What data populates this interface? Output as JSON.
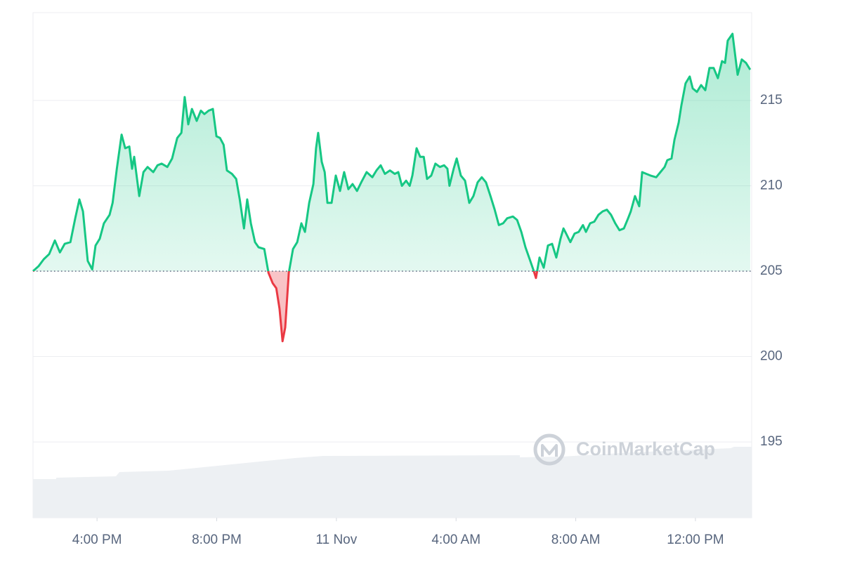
{
  "chart_data": {
    "type": "line",
    "watermark": "CoinMarketCap",
    "baseline": 205,
    "below_color": "#ea3943",
    "xlim": [
      13.86,
      37.88
    ],
    "xticks": [
      {
        "value": 16,
        "label": "4:00 PM"
      },
      {
        "value": 20,
        "label": "8:00 PM"
      },
      {
        "value": 24,
        "label": "11 Nov"
      },
      {
        "value": 28,
        "label": "4:00 AM"
      },
      {
        "value": 32,
        "label": "8:00 AM"
      },
      {
        "value": 36,
        "label": "12:00 PM"
      }
    ],
    "ylim": [
      190.56,
      220.14
    ],
    "yticks": [
      195,
      200,
      205,
      210,
      215
    ],
    "grid": true,
    "x": [
      13.86,
      14.05,
      14.22,
      14.4,
      14.59,
      14.76,
      14.92,
      15.11,
      15.27,
      15.41,
      15.53,
      15.69,
      15.84,
      15.95,
      16.09,
      16.23,
      16.42,
      16.52,
      16.66,
      16.82,
      16.94,
      17.08,
      17.17,
      17.24,
      17.41,
      17.55,
      17.69,
      17.88,
      18.02,
      18.16,
      18.35,
      18.51,
      18.68,
      18.82,
      18.93,
      19.05,
      19.17,
      19.33,
      19.47,
      19.59,
      19.73,
      19.87,
      19.99,
      20.11,
      20.23,
      20.34,
      20.51,
      20.65,
      20.77,
      20.91,
      21.02,
      21.14,
      21.28,
      21.4,
      21.59,
      21.73,
      21.87,
      21.99,
      22.1,
      22.2,
      22.29,
      22.41,
      22.55,
      22.69,
      22.83,
      22.95,
      23.09,
      23.23,
      23.32,
      23.39,
      23.51,
      23.61,
      23.7,
      23.84,
      23.98,
      24.12,
      24.26,
      24.4,
      24.54,
      24.69,
      24.83,
      25.01,
      25.2,
      25.34,
      25.48,
      25.62,
      25.79,
      25.95,
      26.07,
      26.19,
      26.33,
      26.45,
      26.54,
      26.68,
      26.8,
      26.92,
      27.03,
      27.17,
      27.31,
      27.46,
      27.6,
      27.71,
      27.78,
      27.92,
      28.02,
      28.16,
      28.3,
      28.44,
      28.58,
      28.72,
      28.86,
      29.0,
      29.15,
      29.29,
      29.43,
      29.57,
      29.71,
      29.9,
      30.04,
      30.18,
      30.32,
      30.46,
      30.6,
      30.67,
      30.79,
      30.93,
      31.07,
      31.21,
      31.35,
      31.49,
      31.59,
      31.68,
      31.82,
      31.96,
      32.1,
      32.24,
      32.34,
      32.48,
      32.62,
      32.76,
      32.9,
      33.04,
      33.18,
      33.32,
      33.46,
      33.61,
      33.75,
      33.84,
      33.98,
      34.12,
      34.22,
      34.36,
      34.5,
      34.69,
      34.83,
      34.97,
      35.06,
      35.2,
      35.3,
      35.44,
      35.53,
      35.67,
      35.81,
      35.91,
      36.05,
      36.19,
      36.33,
      36.47,
      36.61,
      36.75,
      36.89,
      36.99,
      37.08,
      37.24,
      37.41,
      37.55,
      37.69,
      37.83
    ],
    "series": [
      {
        "color": "#16c784",
        "values": [
          205.0,
          205.3,
          205.7,
          206.0,
          206.8,
          206.1,
          206.6,
          206.7,
          208.1,
          209.2,
          208.5,
          205.6,
          205.1,
          206.5,
          206.9,
          207.8,
          208.3,
          209.0,
          211.0,
          213.0,
          212.2,
          212.3,
          211.0,
          211.7,
          209.4,
          210.8,
          211.1,
          210.8,
          211.2,
          211.3,
          211.1,
          211.6,
          212.8,
          213.1,
          215.2,
          213.6,
          214.5,
          213.8,
          214.4,
          214.2,
          214.4,
          214.5,
          212.9,
          212.8,
          212.4,
          210.9,
          210.7,
          210.4,
          209.2,
          207.5,
          209.2,
          207.8,
          206.7,
          206.4,
          206.3,
          204.9,
          204.3,
          204.0,
          202.8,
          200.9,
          201.7,
          204.9,
          206.3,
          206.7,
          207.8,
          207.3,
          209.0,
          210.1,
          212.2,
          213.1,
          211.4,
          210.8,
          209.0,
          209.0,
          210.6,
          209.7,
          210.8,
          209.8,
          210.1,
          209.7,
          210.2,
          210.8,
          210.5,
          210.9,
          211.2,
          210.7,
          210.9,
          210.7,
          210.8,
          210.0,
          210.3,
          210.0,
          210.6,
          212.2,
          211.7,
          211.7,
          210.4,
          210.6,
          211.3,
          211.1,
          211.2,
          211.0,
          210.0,
          211.0,
          211.6,
          210.6,
          210.3,
          209.0,
          209.4,
          210.2,
          210.5,
          210.2,
          209.4,
          208.6,
          207.7,
          207.8,
          208.1,
          208.2,
          208.0,
          207.3,
          206.4,
          205.7,
          205.0,
          204.6,
          205.8,
          205.2,
          206.5,
          206.6,
          205.8,
          206.9,
          207.5,
          207.2,
          206.7,
          207.2,
          207.3,
          207.7,
          207.3,
          207.8,
          207.9,
          208.3,
          208.5,
          208.6,
          208.3,
          207.8,
          207.4,
          207.5,
          208.1,
          208.5,
          209.4,
          208.8,
          210.8,
          210.7,
          210.6,
          210.5,
          210.8,
          211.1,
          211.5,
          211.6,
          212.7,
          213.7,
          214.7,
          216.0,
          216.4,
          215.7,
          215.5,
          215.9,
          215.6,
          216.9,
          216.9,
          216.3,
          217.3,
          217.2,
          218.5,
          218.9,
          216.5,
          217.4,
          217.2,
          216.8
        ]
      }
    ]
  }
}
